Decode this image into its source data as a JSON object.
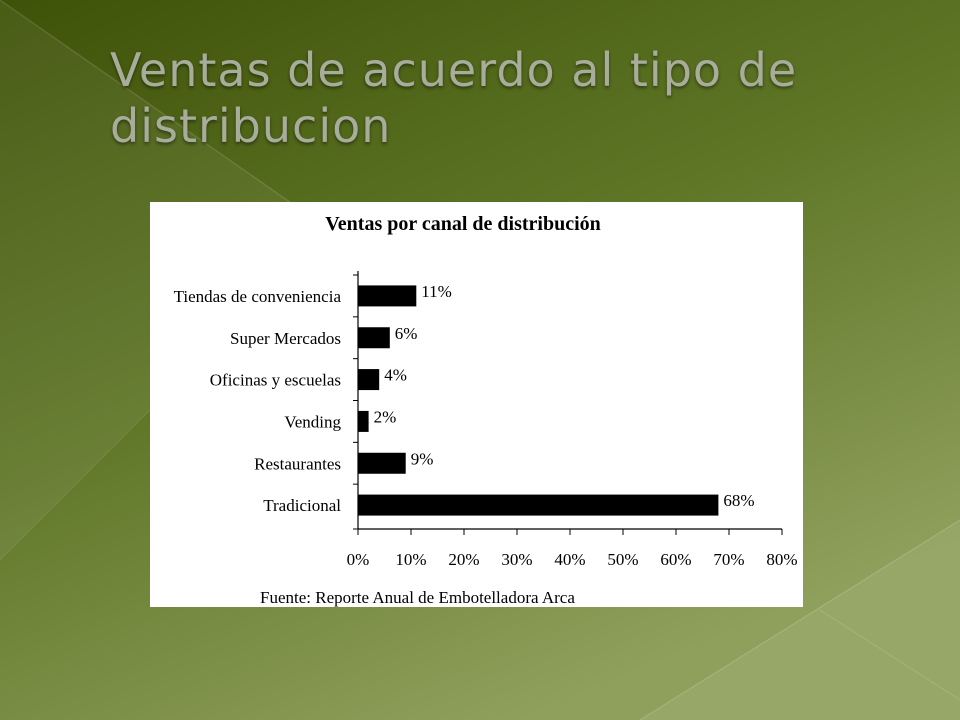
{
  "slide": {
    "title": "Ventas de acuerdo al tipo de distribucion",
    "background_colors": {
      "dark": "#3e5208",
      "mid": "#5f7627",
      "light": "#8fa05c"
    }
  },
  "chart_data": {
    "type": "bar",
    "orientation": "horizontal",
    "title": "Ventas por canal de distribución",
    "categories": [
      "Tiendas de conveniencia",
      "Super Mercados",
      "Oficinas y escuelas",
      "Vending",
      "Restaurantes",
      "Tradicional"
    ],
    "values": [
      11,
      6,
      4,
      2,
      9,
      68
    ],
    "data_labels": [
      "11%",
      "6%",
      "4%",
      "2%",
      "9%",
      "68%"
    ],
    "xlim": [
      0,
      80
    ],
    "xticks": [
      0,
      10,
      20,
      30,
      40,
      50,
      60,
      70,
      80
    ],
    "xtick_labels": [
      "0%",
      "10%",
      "20%",
      "30%",
      "40%",
      "50%",
      "60%",
      "70%",
      "80%"
    ],
    "bar_color": "#000000",
    "grid": false,
    "source_note": "Fuente: Reporte Anual de Embotelladora Arca"
  }
}
